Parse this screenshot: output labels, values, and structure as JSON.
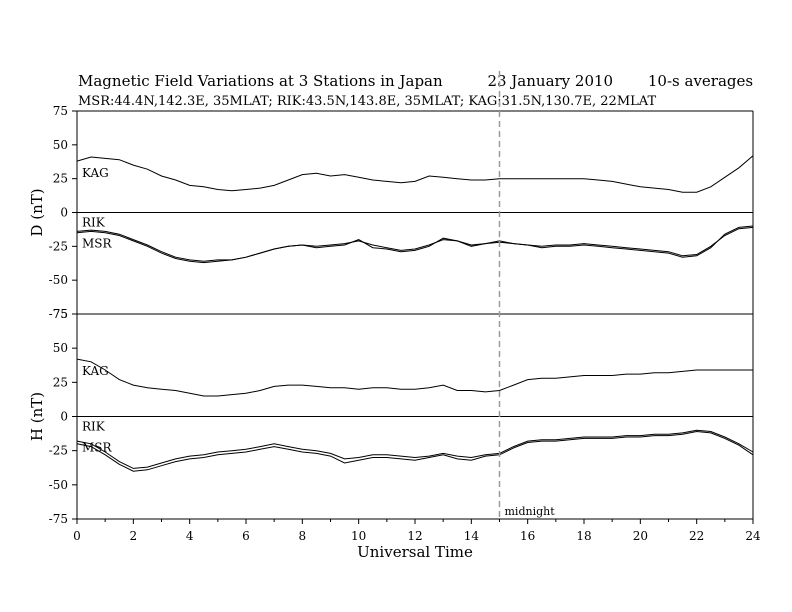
{
  "chart_data": {
    "type": "line",
    "title": "Magnetic Field Variations at 3 Stations in Japan",
    "date": "23 January 2010",
    "averaging": "10-s averages",
    "subtitle": "MSR:44.4N,142.3E, 35MLAT;   RIK:43.5N,143.8E, 35MLAT;   KAG:31.5N,130.7E, 22MLAT",
    "xlabel": "Universal Time",
    "xlim": [
      0,
      24
    ],
    "x_ticks": [
      "0",
      "2",
      "4",
      "6",
      "8",
      "10",
      "12",
      "14",
      "16",
      "18",
      "20",
      "22",
      "24"
    ],
    "midnight_marker": {
      "x": 15,
      "label": "midnight"
    },
    "panels": [
      {
        "ylabel": "D (nT)",
        "ylim": [
          -75,
          75
        ],
        "y_ticks": [
          "75",
          "50",
          "25",
          "0",
          "-25",
          "-50",
          "-75"
        ],
        "series": [
          {
            "name": "KAG",
            "x": [
              0,
              0.5,
              1,
              1.5,
              2,
              2.5,
              3,
              3.5,
              4,
              4.5,
              5,
              5.5,
              6,
              6.5,
              7,
              7.5,
              8,
              8.5,
              9,
              9.5,
              10,
              10.5,
              11,
              11.5,
              12,
              12.5,
              13,
              13.5,
              14,
              14.5,
              15,
              15.5,
              16,
              16.5,
              17,
              17.5,
              18,
              18.5,
              19,
              19.5,
              20,
              20.5,
              21,
              21.5,
              22,
              22.5,
              23,
              23.5,
              24
            ],
            "values": [
              38,
              41,
              40,
              39,
              35,
              32,
              27,
              24,
              20,
              19,
              17,
              16,
              17,
              18,
              20,
              24,
              28,
              29,
              27,
              28,
              26,
              24,
              23,
              22,
              23,
              27,
              26,
              25,
              24,
              24,
              25,
              25,
              25,
              25,
              25,
              25,
              25,
              24,
              23,
              21,
              19,
              18,
              17,
              15,
              15,
              19,
              26,
              33,
              42
            ]
          },
          {
            "name": "RIK",
            "x": [
              0,
              0.5,
              1,
              1.5,
              2,
              2.5,
              3,
              3.5,
              4,
              4.5,
              5,
              5.5,
              6,
              6.5,
              7,
              7.5,
              8,
              8.5,
              9,
              9.5,
              10,
              10.5,
              11,
              11.5,
              12,
              12.5,
              13,
              13.5,
              14,
              14.5,
              15,
              15.5,
              16,
              16.5,
              17,
              17.5,
              18,
              18.5,
              19,
              19.5,
              20,
              20.5,
              21,
              21.5,
              22,
              22.5,
              23,
              23.5,
              24
            ],
            "values": [
              -14,
              -13,
              -14,
              -16,
              -20,
              -24,
              -29,
              -33,
              -35,
              -36,
              -35,
              -35,
              -33,
              -30,
              -27,
              -25,
              -24,
              -25,
              -24,
              -23,
              -21,
              -24,
              -26,
              -28,
              -27,
              -24,
              -20,
              -21,
              -24,
              -23,
              -22,
              -23,
              -24,
              -25,
              -24,
              -24,
              -23,
              -24,
              -25,
              -26,
              -27,
              -28,
              -29,
              -32,
              -31,
              -25,
              -17,
              -12,
              -11
            ]
          },
          {
            "name": "MSR",
            "x": [
              0,
              0.5,
              1,
              1.5,
              2,
              2.5,
              3,
              3.5,
              4,
              4.5,
              5,
              5.5,
              6,
              6.5,
              7,
              7.5,
              8,
              8.5,
              9,
              9.5,
              10,
              10.5,
              11,
              11.5,
              12,
              12.5,
              13,
              13.5,
              14,
              14.5,
              15,
              15.5,
              16,
              16.5,
              17,
              17.5,
              18,
              18.5,
              19,
              19.5,
              20,
              20.5,
              21,
              21.5,
              22,
              22.5,
              23,
              23.5,
              24
            ],
            "values": [
              -15,
              -14,
              -15,
              -17,
              -21,
              -25,
              -30,
              -34,
              -36,
              -37,
              -36,
              -35,
              -33,
              -30,
              -27,
              -25,
              -24,
              -26,
              -25,
              -24,
              -20,
              -26,
              -27,
              -29,
              -28,
              -25,
              -19,
              -21,
              -25,
              -23,
              -21,
              -23,
              -24,
              -26,
              -25,
              -25,
              -24,
              -25,
              -26,
              -27,
              -28,
              -29,
              -30,
              -33,
              -32,
              -26,
              -16,
              -11,
              -10
            ]
          }
        ]
      },
      {
        "ylabel": "H (nT)",
        "ylim": [
          -75,
          75
        ],
        "y_ticks": [
          "75",
          "50",
          "25",
          "0",
          "-25",
          "-50",
          "-75"
        ],
        "series": [
          {
            "name": "KAG",
            "x": [
              0,
              0.5,
              1,
              1.5,
              2,
              2.5,
              3,
              3.5,
              4,
              4.5,
              5,
              5.5,
              6,
              6.5,
              7,
              7.5,
              8,
              8.5,
              9,
              9.5,
              10,
              10.5,
              11,
              11.5,
              12,
              12.5,
              13,
              13.5,
              14,
              14.5,
              15,
              15.5,
              16,
              16.5,
              17,
              17.5,
              18,
              18.5,
              19,
              19.5,
              20,
              20.5,
              21,
              21.5,
              22,
              22.5,
              23,
              23.5,
              24
            ],
            "values": [
              42,
              40,
              34,
              27,
              23,
              21,
              20,
              19,
              17,
              15,
              15,
              16,
              17,
              19,
              22,
              23,
              23,
              22,
              21,
              21,
              20,
              21,
              21,
              20,
              20,
              21,
              23,
              19,
              19,
              18,
              19,
              23,
              27,
              28,
              28,
              29,
              30,
              30,
              30,
              31,
              31,
              32,
              32,
              33,
              34,
              34,
              34,
              34,
              34
            ]
          },
          {
            "name": "RIK",
            "x": [
              0,
              0.5,
              1,
              1.5,
              2,
              2.5,
              3,
              3.5,
              4,
              4.5,
              5,
              5.5,
              6,
              6.5,
              7,
              7.5,
              8,
              8.5,
              9,
              9.5,
              10,
              10.5,
              11,
              11.5,
              12,
              12.5,
              13,
              13.5,
              14,
              14.5,
              15,
              15.5,
              16,
              16.5,
              17,
              17.5,
              18,
              18.5,
              19,
              19.5,
              20,
              20.5,
              21,
              21.5,
              22,
              22.5,
              23,
              23.5,
              24
            ],
            "values": [
              -18,
              -20,
              -26,
              -33,
              -38,
              -37,
              -34,
              -31,
              -29,
              -28,
              -26,
              -25,
              -24,
              -22,
              -20,
              -22,
              -24,
              -25,
              -27,
              -31,
              -30,
              -28,
              -28,
              -29,
              -30,
              -29,
              -27,
              -29,
              -30,
              -28,
              -27,
              -22,
              -18,
              -17,
              -17,
              -16,
              -15,
              -15,
              -15,
              -14,
              -14,
              -13,
              -13,
              -12,
              -10,
              -11,
              -15,
              -20,
              -26
            ]
          },
          {
            "name": "MSR",
            "x": [
              0,
              0.5,
              1,
              1.5,
              2,
              2.5,
              3,
              3.5,
              4,
              4.5,
              5,
              5.5,
              6,
              6.5,
              7,
              7.5,
              8,
              8.5,
              9,
              9.5,
              10,
              10.5,
              11,
              11.5,
              12,
              12.5,
              13,
              13.5,
              14,
              14.5,
              15,
              15.5,
              16,
              16.5,
              17,
              17.5,
              18,
              18.5,
              19,
              19.5,
              20,
              20.5,
              21,
              21.5,
              22,
              22.5,
              23,
              23.5,
              24
            ],
            "values": [
              -20,
              -22,
              -28,
              -35,
              -40,
              -39,
              -36,
              -33,
              -31,
              -30,
              -28,
              -27,
              -26,
              -24,
              -22,
              -24,
              -26,
              -27,
              -29,
              -34,
              -32,
              -30,
              -30,
              -31,
              -32,
              -30,
              -28,
              -31,
              -32,
              -29,
              -28,
              -23,
              -19,
              -18,
              -18,
              -17,
              -16,
              -16,
              -16,
              -15,
              -15,
              -14,
              -14,
              -13,
              -11,
              -12,
              -16,
              -21,
              -28
            ]
          }
        ]
      }
    ]
  }
}
